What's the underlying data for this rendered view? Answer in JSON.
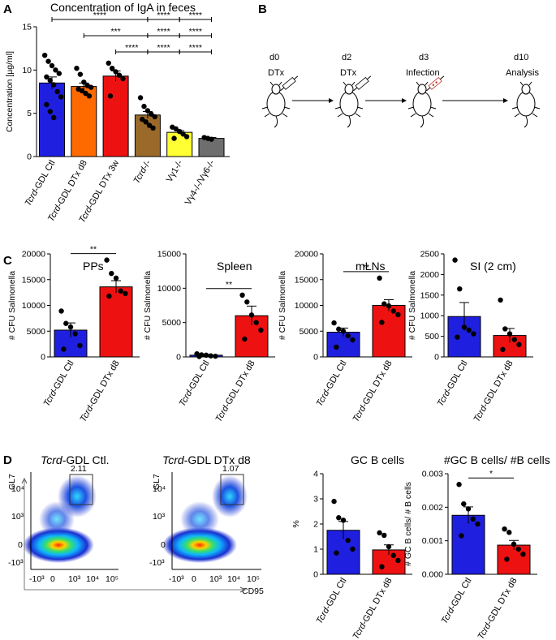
{
  "panel_letters": {
    "A": "A",
    "B": "B",
    "C": "C",
    "D": "D"
  },
  "colors": {
    "blue": "#1f1fe0",
    "orange": "#ff6a00",
    "red": "#ee1111",
    "brown": "#9b6a2a",
    "yellow": "#ffff33",
    "gray": "#6e6e6e",
    "dot": "#000000"
  },
  "chart_data": [
    {
      "id": "iga",
      "type": "bar",
      "title": "Concentration of IgA in feces",
      "ylabel": "Concentration [µg/ml]",
      "ylim": [
        0,
        15
      ],
      "yticks": [
        0,
        5,
        10,
        15
      ],
      "categories": [
        {
          "prefix": "Tcrd",
          "rest": "-GDL Ctl"
        },
        {
          "prefix": "Tcrd",
          "rest": "-GDL DTx d8"
        },
        {
          "prefix": "Tcrd",
          "rest": "-GDL DTx 3w"
        },
        {
          "prefix": "Tcrd",
          "rest": "-/-"
        },
        {
          "prefix": "",
          "rest": "Vγ1-/-"
        },
        {
          "prefix": "",
          "rest": "Vγ4-/-/Vγ6-/-"
        }
      ],
      "values": [
        8.5,
        8.1,
        9.3,
        4.8,
        2.8,
        2.1
      ],
      "errors": [
        0.7,
        0.4,
        0.6,
        0.4,
        0.2,
        0.1
      ],
      "colorKeys": [
        "blue",
        "orange",
        "red",
        "brown",
        "yellow",
        "gray"
      ],
      "points": [
        [
          11.7,
          11.0,
          10.5,
          10.0,
          9.6,
          9.2,
          8.8,
          8.3,
          7.5,
          6.9,
          6.0,
          5.2,
          4.5
        ],
        [
          10.2,
          9.5,
          8.6,
          8.2,
          8.0,
          7.8,
          7.6,
          7.3,
          7.0
        ],
        [
          10.8,
          10.2,
          9.8,
          9.4,
          9.0,
          7.0
        ],
        [
          6.8,
          5.8,
          5.3,
          4.9,
          4.6,
          4.3,
          4.0,
          3.6,
          3.3
        ],
        [
          3.4,
          3.2,
          2.9,
          2.6,
          2.3,
          2.1
        ],
        [
          2.2,
          2.1,
          2.0
        ]
      ],
      "comparisons": [
        {
          "from": 0,
          "to": 3,
          "label": "****"
        },
        {
          "from": 3,
          "to": 4,
          "label": "****"
        },
        {
          "from": 4,
          "to": 5,
          "label": "****"
        },
        {
          "from": 1,
          "to": 3,
          "label": "***"
        },
        {
          "from": 3,
          "to": 4,
          "label": "****"
        },
        {
          "from": 4,
          "to": 5,
          "label": "****"
        },
        {
          "from": 2,
          "to": 3,
          "label": "****"
        },
        {
          "from": 3,
          "to": 4,
          "label": "****"
        },
        {
          "from": 4,
          "to": 5,
          "label": "****"
        }
      ]
    },
    {
      "id": "pps",
      "type": "bar",
      "title": "PPs",
      "ylabel": "# CFU Salmonella",
      "ylim": [
        0,
        20000
      ],
      "yticks": [
        0,
        5000,
        10000,
        15000,
        20000
      ],
      "categories": [
        {
          "prefix": "Tcrd",
          "rest": "-GDL Ctl"
        },
        {
          "prefix": "Tcrd",
          "rest": "-GDL DTx d8"
        }
      ],
      "values": [
        5200,
        13600
      ],
      "errors": [
        1400,
        1200
      ],
      "colorKeys": [
        "blue",
        "red"
      ],
      "points": [
        [
          8900,
          6500,
          5800,
          4500,
          2200,
          1500
        ],
        [
          18800,
          16200,
          15300,
          12800,
          12300,
          11800
        ]
      ],
      "sig": "**"
    },
    {
      "id": "spleen",
      "type": "bar",
      "title": "Spleen",
      "ylabel": "# CFU Salmonella",
      "ylim": [
        0,
        15000
      ],
      "yticks": [
        0,
        5000,
        10000,
        15000
      ],
      "categories": [
        {
          "prefix": "Tcrd",
          "rest": "-GDL Ctl"
        },
        {
          "prefix": "Tcrd",
          "rest": "-GDL DTx d8"
        }
      ],
      "values": [
        250,
        6000
      ],
      "errors": [
        100,
        1400
      ],
      "colorKeys": [
        "blue",
        "red"
      ],
      "points": [
        [
          450,
          300,
          250,
          150,
          100,
          60
        ],
        [
          9000,
          8000,
          6100,
          5000,
          3900,
          2600
        ]
      ],
      "sig": "**"
    },
    {
      "id": "mlns",
      "type": "bar",
      "title": "mLNs",
      "ylabel": "# CFU Salmonella",
      "ylim": [
        0,
        20000
      ],
      "yticks": [
        0,
        5000,
        10000,
        15000,
        20000
      ],
      "categories": [
        {
          "prefix": "Tcrd",
          "rest": "-GDL Ctl"
        },
        {
          "prefix": "Tcrd",
          "rest": "-GDL DTx d8"
        }
      ],
      "values": [
        4800,
        10000
      ],
      "errors": [
        800,
        1100
      ],
      "colorKeys": [
        "blue",
        "red"
      ],
      "points": [
        [
          6600,
          5400,
          5000,
          4100,
          3300,
          1900
        ],
        [
          15300,
          10300,
          9900,
          8900,
          8200,
          6700
        ]
      ],
      "sig": "**"
    },
    {
      "id": "si",
      "type": "bar",
      "title": "SI (2 cm)",
      "ylabel": "# CFU Salmonella",
      "ylim": [
        0,
        2500
      ],
      "yticks": [
        0,
        500,
        1000,
        1500,
        2000,
        2500
      ],
      "categories": [
        {
          "prefix": "Tcrd",
          "rest": "-GDL Ctl"
        },
        {
          "prefix": "Tcrd",
          "rest": "-GDL DTx d8"
        }
      ],
      "values": [
        980,
        520
      ],
      "errors": [
        340,
        170
      ],
      "colorKeys": [
        "blue",
        "red"
      ],
      "points": [
        [
          2350,
          1650,
          720,
          650,
          560,
          480
        ],
        [
          1380,
          680,
          560,
          420,
          300,
          180
        ]
      ],
      "sig": ""
    },
    {
      "id": "gc",
      "type": "bar",
      "title": "GC B cells",
      "ylabel": "%",
      "ylim": [
        0,
        4
      ],
      "yticks": [
        0,
        1,
        2,
        3,
        4
      ],
      "categories": [
        {
          "prefix": "Tcrd",
          "rest": "-GDL Ctl"
        },
        {
          "prefix": "Tcrd",
          "rest": "-GDL DTx d8"
        }
      ],
      "values": [
        1.75,
        0.97
      ],
      "errors": [
        0.35,
        0.2
      ],
      "colorKeys": [
        "blue",
        "red"
      ],
      "points": [
        [
          2.9,
          2.25,
          2.15,
          1.35,
          1.0,
          0.85
        ],
        [
          1.65,
          1.55,
          1.1,
          0.75,
          0.55,
          0.3
        ]
      ],
      "sig": ""
    },
    {
      "id": "ratio",
      "type": "bar",
      "title": "#GC B cells/ #B cells",
      "ylabel": "# GC B cells/ # B cells",
      "ylim": [
        0,
        0.003
      ],
      "yticks": [
        0,
        0.001,
        0.002,
        0.003
      ],
      "ytickLabels": [
        "0.000",
        "0.001",
        "0.002",
        "0.003"
      ],
      "categories": [
        {
          "prefix": "Tcrd",
          "rest": "-GDL Ctl"
        },
        {
          "prefix": "Tcrd",
          "rest": "-GDL DTx d8"
        }
      ],
      "values": [
        0.00176,
        0.00087
      ],
      "errors": [
        0.00025,
        0.00014
      ],
      "colorKeys": [
        "blue",
        "red"
      ],
      "points": [
        [
          0.00268,
          0.0021,
          0.00195,
          0.00165,
          0.0015,
          0.00115
        ],
        [
          0.00135,
          0.00125,
          0.0009,
          0.00075,
          0.0006,
          0.00045
        ]
      ],
      "sig": "*"
    }
  ],
  "timeline": {
    "steps": [
      {
        "day": "d0",
        "label": "DTx",
        "tool": "syringe"
      },
      {
        "day": "d2",
        "label": "DTx",
        "tool": "syringe"
      },
      {
        "day": "d3",
        "label": "Infection",
        "tool": "syringe-red"
      },
      {
        "day": "d10",
        "label": "Analysis",
        "tool": ""
      }
    ]
  },
  "flow": {
    "plots": [
      {
        "title_italic": "Tcrd",
        "title_rest": "-GDL Ctl.",
        "gate_value": "2.11"
      },
      {
        "title_italic": "Tcrd",
        "title_rest": "-GDL DTx d8",
        "gate_value": "1.07"
      }
    ],
    "y_axis_label": "GL7",
    "x_axis_label": "CD95",
    "y_ticks": [
      "10⁴",
      "10³",
      "0",
      "-10³"
    ],
    "x_ticks": [
      "-10³",
      "0",
      "10³",
      "10⁴",
      "10⁵"
    ]
  }
}
